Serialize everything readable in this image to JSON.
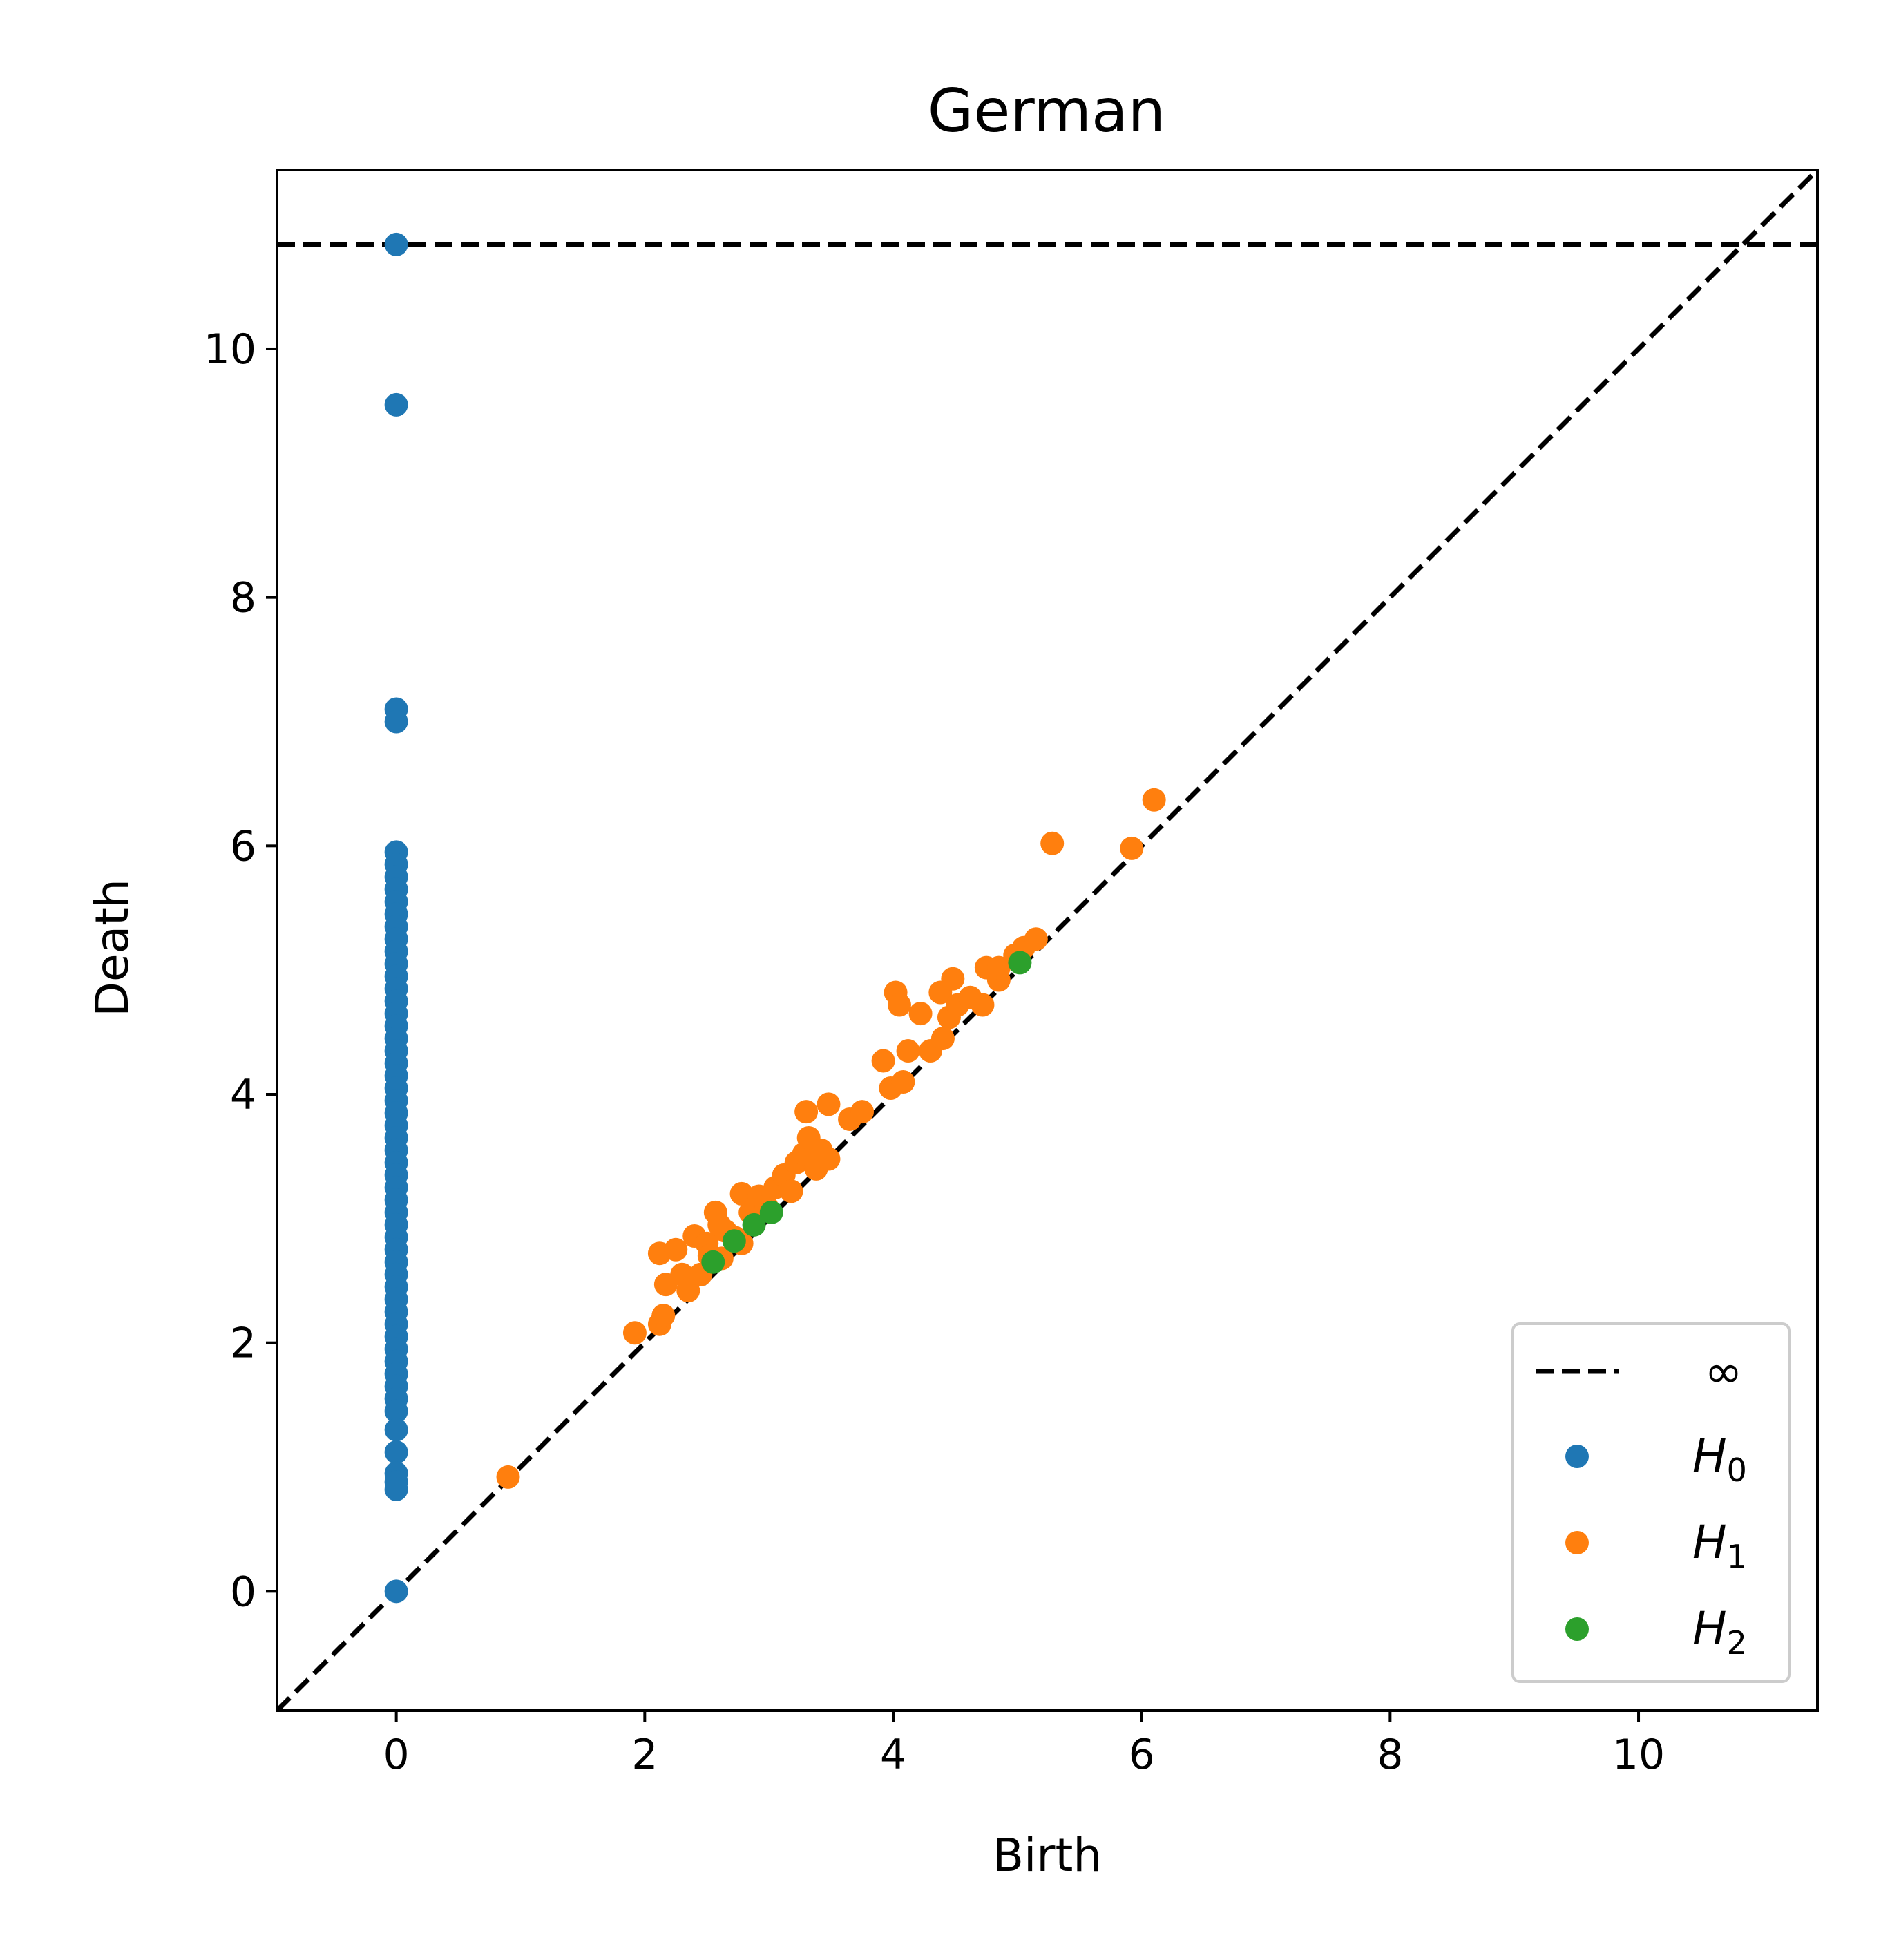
{
  "chart_data": {
    "type": "scatter",
    "title": "German",
    "xlabel": "Birth",
    "ylabel": "Death",
    "xlim": [
      -0.96,
      11.44
    ],
    "ylim": [
      -0.96,
      11.44
    ],
    "xticks": [
      0,
      2,
      4,
      6,
      8,
      10
    ],
    "yticks": [
      0,
      2,
      4,
      6,
      8,
      10
    ],
    "infinity_death": 10.84,
    "grid": false,
    "legend_position": "lower-right",
    "legend": {
      "line_label": "∞",
      "entries": [
        {
          "base": "H",
          "sub": "0",
          "color": "#1f77b4"
        },
        {
          "base": "H",
          "sub": "1",
          "color": "#ff7f0e"
        },
        {
          "base": "H",
          "sub": "2",
          "color": "#2ca02c"
        }
      ]
    },
    "series": [
      {
        "name": "H0",
        "color": "#1f77b4",
        "points": [
          [
            0,
            10.84
          ],
          [
            0,
            9.55
          ],
          [
            0,
            7.1
          ],
          [
            0,
            7.0
          ],
          [
            0,
            5.95
          ],
          [
            0,
            5.85
          ],
          [
            0,
            5.75
          ],
          [
            0,
            5.65
          ],
          [
            0,
            5.55
          ],
          [
            0,
            5.45
          ],
          [
            0,
            5.35
          ],
          [
            0,
            5.25
          ],
          [
            0,
            5.15
          ],
          [
            0,
            5.05
          ],
          [
            0,
            4.95
          ],
          [
            0,
            4.85
          ],
          [
            0,
            4.75
          ],
          [
            0,
            4.65
          ],
          [
            0,
            4.55
          ],
          [
            0,
            4.45
          ],
          [
            0,
            4.35
          ],
          [
            0,
            4.25
          ],
          [
            0,
            4.15
          ],
          [
            0,
            4.05
          ],
          [
            0,
            3.95
          ],
          [
            0,
            3.85
          ],
          [
            0,
            3.75
          ],
          [
            0,
            3.65
          ],
          [
            0,
            3.55
          ],
          [
            0,
            3.45
          ],
          [
            0,
            3.35
          ],
          [
            0,
            3.25
          ],
          [
            0,
            3.15
          ],
          [
            0,
            3.05
          ],
          [
            0,
            2.95
          ],
          [
            0,
            2.85
          ],
          [
            0,
            2.75
          ],
          [
            0,
            2.65
          ],
          [
            0,
            2.55
          ],
          [
            0,
            2.45
          ],
          [
            0,
            2.35
          ],
          [
            0,
            2.25
          ],
          [
            0,
            2.15
          ],
          [
            0,
            2.05
          ],
          [
            0,
            1.95
          ],
          [
            0,
            1.85
          ],
          [
            0,
            1.75
          ],
          [
            0,
            1.65
          ],
          [
            0,
            1.55
          ],
          [
            0,
            1.45
          ],
          [
            0,
            1.3
          ],
          [
            0,
            1.12
          ],
          [
            0,
            0.95
          ],
          [
            0,
            0.88
          ],
          [
            0,
            0.82
          ],
          [
            0,
            0.0
          ]
        ]
      },
      {
        "name": "H1",
        "color": "#ff7f0e",
        "points": [
          [
            0.9,
            0.92
          ],
          [
            1.92,
            2.08
          ],
          [
            2.12,
            2.15
          ],
          [
            2.15,
            2.22
          ],
          [
            2.12,
            2.72
          ],
          [
            2.17,
            2.47
          ],
          [
            2.25,
            2.75
          ],
          [
            2.3,
            2.55
          ],
          [
            2.35,
            2.42
          ],
          [
            2.4,
            2.86
          ],
          [
            2.45,
            2.55
          ],
          [
            2.5,
            2.8
          ],
          [
            2.52,
            2.7
          ],
          [
            2.57,
            3.05
          ],
          [
            2.6,
            2.95
          ],
          [
            2.62,
            2.68
          ],
          [
            2.65,
            2.9
          ],
          [
            2.72,
            2.85
          ],
          [
            2.78,
            2.8
          ],
          [
            2.78,
            3.2
          ],
          [
            2.85,
            3.05
          ],
          [
            2.92,
            3.18
          ],
          [
            2.98,
            3.1
          ],
          [
            3.05,
            3.25
          ],
          [
            3.12,
            3.35
          ],
          [
            3.18,
            3.22
          ],
          [
            3.22,
            3.45
          ],
          [
            3.28,
            3.52
          ],
          [
            3.3,
            3.86
          ],
          [
            3.32,
            3.65
          ],
          [
            3.38,
            3.4
          ],
          [
            3.42,
            3.55
          ],
          [
            3.48,
            3.92
          ],
          [
            3.48,
            3.48
          ],
          [
            3.65,
            3.8
          ],
          [
            3.75,
            3.86
          ],
          [
            3.92,
            4.27
          ],
          [
            3.98,
            4.05
          ],
          [
            4.02,
            4.82
          ],
          [
            4.05,
            4.72
          ],
          [
            4.08,
            4.1
          ],
          [
            4.12,
            4.35
          ],
          [
            4.22,
            4.65
          ],
          [
            4.3,
            4.35
          ],
          [
            4.38,
            4.82
          ],
          [
            4.4,
            4.45
          ],
          [
            4.45,
            4.62
          ],
          [
            4.48,
            4.93
          ],
          [
            4.52,
            4.72
          ],
          [
            4.62,
            4.78
          ],
          [
            4.72,
            4.72
          ],
          [
            4.75,
            5.02
          ],
          [
            4.85,
            4.92
          ],
          [
            4.85,
            5.02
          ],
          [
            4.98,
            5.12
          ],
          [
            5.05,
            5.18
          ],
          [
            5.15,
            5.25
          ],
          [
            5.28,
            6.02
          ],
          [
            5.92,
            5.98
          ],
          [
            6.1,
            6.37
          ]
        ]
      },
      {
        "name": "H2",
        "color": "#2ca02c",
        "points": [
          [
            2.55,
            2.65
          ],
          [
            2.72,
            2.82
          ],
          [
            2.88,
            2.95
          ],
          [
            3.02,
            3.05
          ],
          [
            5.02,
            5.06
          ]
        ]
      }
    ]
  }
}
